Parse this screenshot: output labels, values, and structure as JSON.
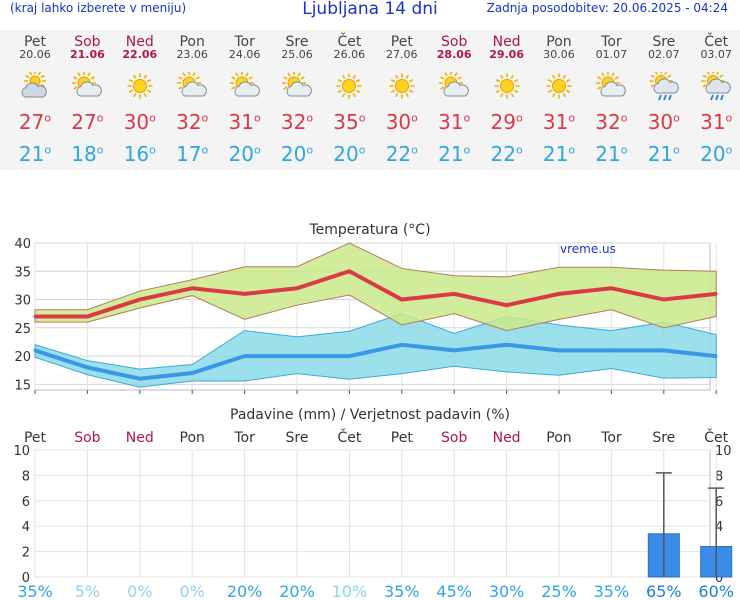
{
  "header": {
    "menu_hint": "(kraj lahko izberete v meniju)",
    "title": "Ljubljana 14 dni",
    "updated": "Zadnja posodobitev: 20.06.2025 - 04:24"
  },
  "days": [
    {
      "name": "Pet",
      "date": "20.06",
      "weekend": false,
      "icon": "partly-cloudy-icon",
      "tmax": "27",
      "tmin": "21"
    },
    {
      "name": "Sob",
      "date": "21.06",
      "weekend": true,
      "icon": "sun-cloud-icon",
      "tmax": "27",
      "tmin": "18"
    },
    {
      "name": "Ned",
      "date": "22.06",
      "weekend": true,
      "icon": "sun-icon",
      "tmax": "30",
      "tmin": "16"
    },
    {
      "name": "Pon",
      "date": "23.06",
      "weekend": false,
      "icon": "sun-cloud-icon",
      "tmax": "32",
      "tmin": "17"
    },
    {
      "name": "Tor",
      "date": "24.06",
      "weekend": false,
      "icon": "sun-cloud-icon",
      "tmax": "31",
      "tmin": "20"
    },
    {
      "name": "Sre",
      "date": "25.06",
      "weekend": false,
      "icon": "sun-cloud-icon",
      "tmax": "32",
      "tmin": "20"
    },
    {
      "name": "Čet",
      "date": "26.06",
      "weekend": false,
      "icon": "sun-icon",
      "tmax": "35",
      "tmin": "20"
    },
    {
      "name": "Pet",
      "date": "27.06",
      "weekend": false,
      "icon": "sun-icon",
      "tmax": "30",
      "tmin": "22"
    },
    {
      "name": "Sob",
      "date": "28.06",
      "weekend": true,
      "icon": "sun-cloud-icon",
      "tmax": "31",
      "tmin": "21"
    },
    {
      "name": "Ned",
      "date": "29.06",
      "weekend": true,
      "icon": "sun-icon",
      "tmax": "29",
      "tmin": "22"
    },
    {
      "name": "Pon",
      "date": "30.06",
      "weekend": false,
      "icon": "sun-icon",
      "tmax": "31",
      "tmin": "21"
    },
    {
      "name": "Tor",
      "date": "01.07",
      "weekend": false,
      "icon": "sun-cloud-icon",
      "tmax": "32",
      "tmin": "21"
    },
    {
      "name": "Sre",
      "date": "02.07",
      "weekend": false,
      "icon": "sun-cloud-rain-icon",
      "tmax": "30",
      "tmin": "21"
    },
    {
      "name": "Čet",
      "date": "03.07",
      "weekend": false,
      "icon": "sun-cloud-rain-icon",
      "tmax": "31",
      "tmin": "20"
    }
  ],
  "degree_symbol": "o",
  "colors": {
    "accent_blue": "#1a33cc",
    "weekend": "#b0164a",
    "tmax_line": "#d93a46",
    "tmin_line": "#3a97e8",
    "tmax_band": "#c9e98a",
    "tmin_band": "#8adbe8",
    "precip_bar": "#3a8ce8"
  },
  "chart_data": [
    {
      "type": "line",
      "title": "Temperatura (°C)",
      "watermark": "vreme.us",
      "x": [
        "Pet 20.06",
        "Sob 21.06",
        "Ned 22.06",
        "Pon 23.06",
        "Tor 24.06",
        "Sre 25.06",
        "Čet 26.06",
        "Pet 27.06",
        "Sob 28.06",
        "Ned 29.06",
        "Pon 30.06",
        "Tor 01.07",
        "Sre 02.07",
        "Čet 03.07"
      ],
      "ylim": [
        14,
        40
      ],
      "yticks": [
        15,
        20,
        25,
        30,
        35,
        40
      ],
      "grid": true,
      "series": [
        {
          "values": [
            27,
            27,
            30,
            32,
            31,
            32,
            35,
            30,
            31,
            29,
            31,
            32,
            30,
            31
          ]
        },
        {
          "values": [
            28.2,
            28.2,
            31.5,
            33.5,
            35.8,
            35.8,
            40,
            35.5,
            34.2,
            34,
            35.7,
            35.7,
            35.2,
            35
          ]
        },
        {
          "values": [
            26,
            26,
            28.5,
            30.7,
            26.5,
            29,
            30.8,
            25.5,
            27.5,
            24.5,
            26.5,
            28.2,
            25,
            27
          ]
        },
        {
          "values": [
            21,
            18,
            16,
            17,
            20,
            20,
            20,
            22,
            21,
            22,
            21,
            21,
            21,
            20
          ]
        },
        {
          "values": [
            22,
            19.2,
            17.7,
            18.5,
            24.5,
            23.4,
            24.4,
            27.5,
            24,
            27,
            25.5,
            24.5,
            26,
            23.8
          ]
        },
        {
          "values": [
            19.8,
            16.7,
            14.5,
            15.6,
            15.6,
            16.9,
            15.9,
            16.9,
            18.2,
            17.2,
            16.6,
            17.8,
            16.1,
            16.2
          ]
        }
      ]
    },
    {
      "type": "bar",
      "title": "Padavine (mm) / Verjetnost padavin (%)",
      "categories": [
        "Pet",
        "Sob",
        "Ned",
        "Pon",
        "Tor",
        "Sre",
        "Čet",
        "Pet",
        "Sob",
        "Ned",
        "Pon",
        "Tor",
        "Sre",
        "Čet"
      ],
      "ylim": [
        0,
        10
      ],
      "yticks": [
        0,
        2,
        4,
        6,
        8,
        10
      ],
      "values": [
        0,
        0,
        0,
        0,
        0,
        0,
        0,
        0,
        0,
        0,
        0,
        0,
        3.4,
        2.4
      ],
      "error_high": [
        null,
        null,
        null,
        null,
        null,
        null,
        null,
        null,
        null,
        null,
        null,
        null,
        8.2,
        7
      ],
      "probability": [
        "35%",
        "5%",
        "0%",
        "0%",
        "20%",
        "20%",
        "10%",
        "35%",
        "45%",
        "30%",
        "25%",
        "35%",
        "65%",
        "60%"
      ]
    }
  ]
}
